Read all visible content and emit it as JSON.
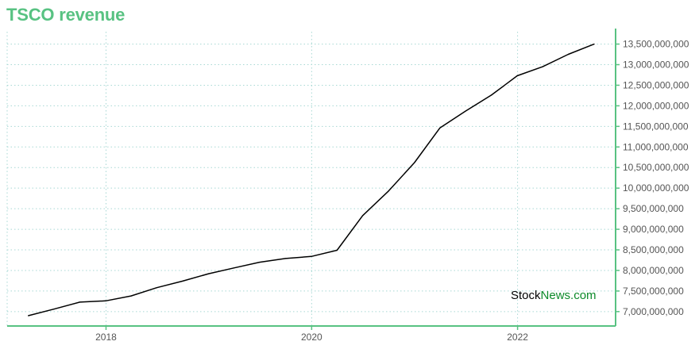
{
  "header": {
    "title": "TSCO revenue"
  },
  "watermark": {
    "part1": "Stock",
    "part2": "News.com"
  },
  "colors": {
    "accent": "#58c282",
    "line": "#000000",
    "grid": "#a8d8d4",
    "tick_text": "#555555"
  },
  "chart_data": {
    "type": "line",
    "title": "TSCO revenue",
    "xlabel": "",
    "ylabel": "",
    "grid": true,
    "y_axis_side": "right",
    "xlim": [
      "2017-01-15",
      "2022-12-15"
    ],
    "ylim": [
      6650000000,
      13800000000
    ],
    "x_ticks": [
      "2018",
      "2020",
      "2022"
    ],
    "x_tick_dates": [
      "2018-01-01",
      "2020-01-01",
      "2022-01-01"
    ],
    "y_ticks": [
      7000000000,
      7500000000,
      8000000000,
      8500000000,
      9000000000,
      9500000000,
      10000000000,
      10500000000,
      11000000000,
      11500000000,
      12000000000,
      12500000000,
      13000000000,
      13500000000
    ],
    "y_tick_labels": [
      "7,000,000,000",
      "7,500,000,000",
      "8,000,000,000",
      "8,500,000,000",
      "9,000,000,000",
      "9,500,000,000",
      "10,000,000,000",
      "10,500,000,000",
      "11,000,000,000",
      "11,500,000,000",
      "12,000,000,000",
      "12,500,000,000",
      "13,000,000,000",
      "13,500,000,000"
    ],
    "series": [
      {
        "x": [
          "2017-03-31",
          "2017-06-30",
          "2017-09-30",
          "2017-12-31",
          "2018-03-31",
          "2018-06-30",
          "2018-09-30",
          "2018-12-31",
          "2019-03-31",
          "2019-06-30",
          "2019-09-30",
          "2019-12-31",
          "2020-03-31",
          "2020-06-30",
          "2020-09-30",
          "2020-12-31",
          "2021-03-31",
          "2021-06-30",
          "2021-09-30",
          "2021-12-31",
          "2022-03-31",
          "2022-06-30",
          "2022-09-30"
        ],
        "values": [
          6900000000,
          7060000000,
          7230000000,
          7260000000,
          7380000000,
          7580000000,
          7740000000,
          7920000000,
          8060000000,
          8200000000,
          8290000000,
          8340000000,
          8490000000,
          9330000000,
          9930000000,
          10620000000,
          11460000000,
          11870000000,
          12260000000,
          12730000000,
          12950000000,
          13250000000,
          13500000000
        ]
      }
    ]
  }
}
